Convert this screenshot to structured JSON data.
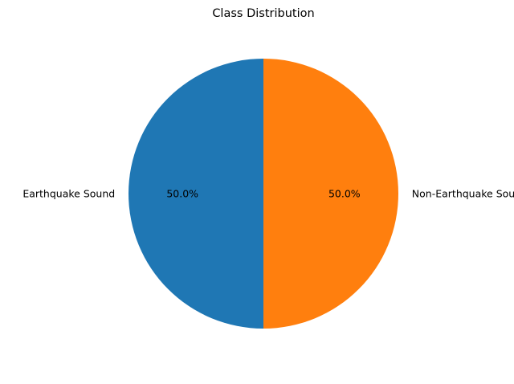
{
  "chart_data": {
    "type": "pie",
    "title": "Class Distribution",
    "labels": [
      "Earthquake Sound",
      "Non-Earthquake Sound"
    ],
    "values": [
      50,
      50
    ],
    "percent_labels": [
      "50.0%",
      "50.0%"
    ],
    "colors": [
      "#1f77b4",
      "#ff7f0e"
    ],
    "start_angle_deg": 90,
    "direction": "counterclockwise",
    "legend": "none"
  }
}
